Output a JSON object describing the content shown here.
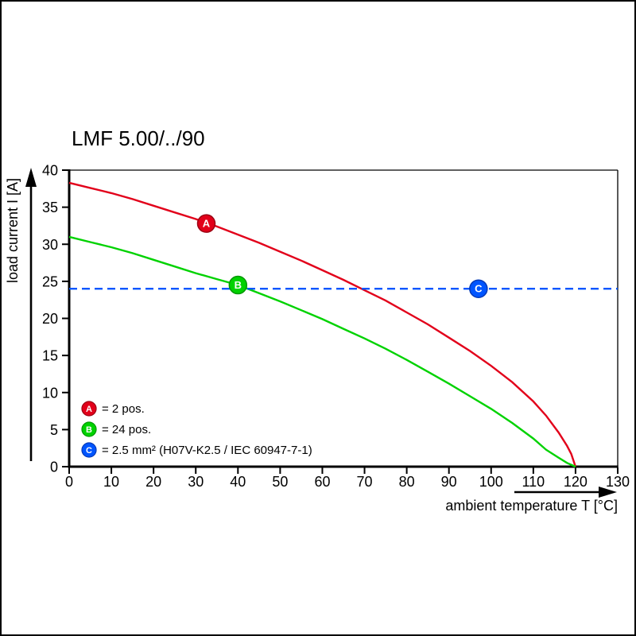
{
  "title": "LMF 5.00/../90",
  "chart_data": {
    "type": "line",
    "title": "LMF 5.00/../90",
    "xlabel": "ambient temperature T [°C]",
    "ylabel": "load current I [A]",
    "xlim": [
      0,
      130
    ],
    "ylim": [
      0,
      40
    ],
    "x_ticks": [
      0,
      10,
      20,
      30,
      40,
      50,
      60,
      70,
      80,
      90,
      100,
      110,
      120,
      130
    ],
    "y_ticks": [
      0,
      5,
      10,
      15,
      20,
      25,
      30,
      35,
      40
    ],
    "grid": false,
    "legend_position": "bottom-left-inside",
    "series": [
      {
        "name": "A",
        "legend": "= 2 pos.",
        "color": "#e2001a",
        "edge": "#9b0012",
        "style": "solid",
        "marker": {
          "x": 32.5,
          "y": 32.8
        },
        "points": [
          [
            0,
            38.3
          ],
          [
            5,
            37.6
          ],
          [
            10,
            36.9
          ],
          [
            15,
            36.1
          ],
          [
            20,
            35.2
          ],
          [
            25,
            34.3
          ],
          [
            30,
            33.4
          ],
          [
            35,
            32.4
          ],
          [
            40,
            31.3
          ],
          [
            45,
            30.2
          ],
          [
            50,
            29.0
          ],
          [
            55,
            27.8
          ],
          [
            60,
            26.5
          ],
          [
            65,
            25.2
          ],
          [
            70,
            23.8
          ],
          [
            75,
            22.4
          ],
          [
            80,
            20.8
          ],
          [
            85,
            19.2
          ],
          [
            90,
            17.4
          ],
          [
            95,
            15.6
          ],
          [
            100,
            13.6
          ],
          [
            105,
            11.4
          ],
          [
            110,
            8.8
          ],
          [
            113,
            6.9
          ],
          [
            116,
            4.6
          ],
          [
            118,
            2.8
          ],
          [
            119,
            1.7
          ],
          [
            120,
            0
          ]
        ]
      },
      {
        "name": "B",
        "legend": "= 24 pos.",
        "color": "#00d200",
        "edge": "#009800",
        "style": "solid",
        "marker": {
          "x": 40,
          "y": 24.5
        },
        "points": [
          [
            0,
            31.0
          ],
          [
            5,
            30.3
          ],
          [
            10,
            29.6
          ],
          [
            15,
            28.8
          ],
          [
            20,
            27.9
          ],
          [
            25,
            27.0
          ],
          [
            30,
            26.1
          ],
          [
            35,
            25.3
          ],
          [
            40,
            24.5
          ],
          [
            45,
            23.4
          ],
          [
            50,
            22.3
          ],
          [
            55,
            21.1
          ],
          [
            60,
            19.9
          ],
          [
            65,
            18.6
          ],
          [
            70,
            17.3
          ],
          [
            75,
            15.9
          ],
          [
            80,
            14.4
          ],
          [
            85,
            12.8
          ],
          [
            90,
            11.2
          ],
          [
            95,
            9.5
          ],
          [
            100,
            7.8
          ],
          [
            105,
            5.9
          ],
          [
            110,
            3.8
          ],
          [
            113,
            2.3
          ],
          [
            116,
            1.2
          ],
          [
            118,
            0.5
          ],
          [
            120,
            0
          ]
        ]
      },
      {
        "name": "C",
        "legend": "= 2.5 mm² (H07V-K2.5 / IEC 60947-7-1)",
        "color": "#0055ff",
        "edge": "#0038b8",
        "style": "dashed",
        "marker": {
          "x": 97,
          "y": 24
        },
        "points": [
          [
            0,
            24
          ],
          [
            130,
            24
          ]
        ]
      }
    ]
  }
}
